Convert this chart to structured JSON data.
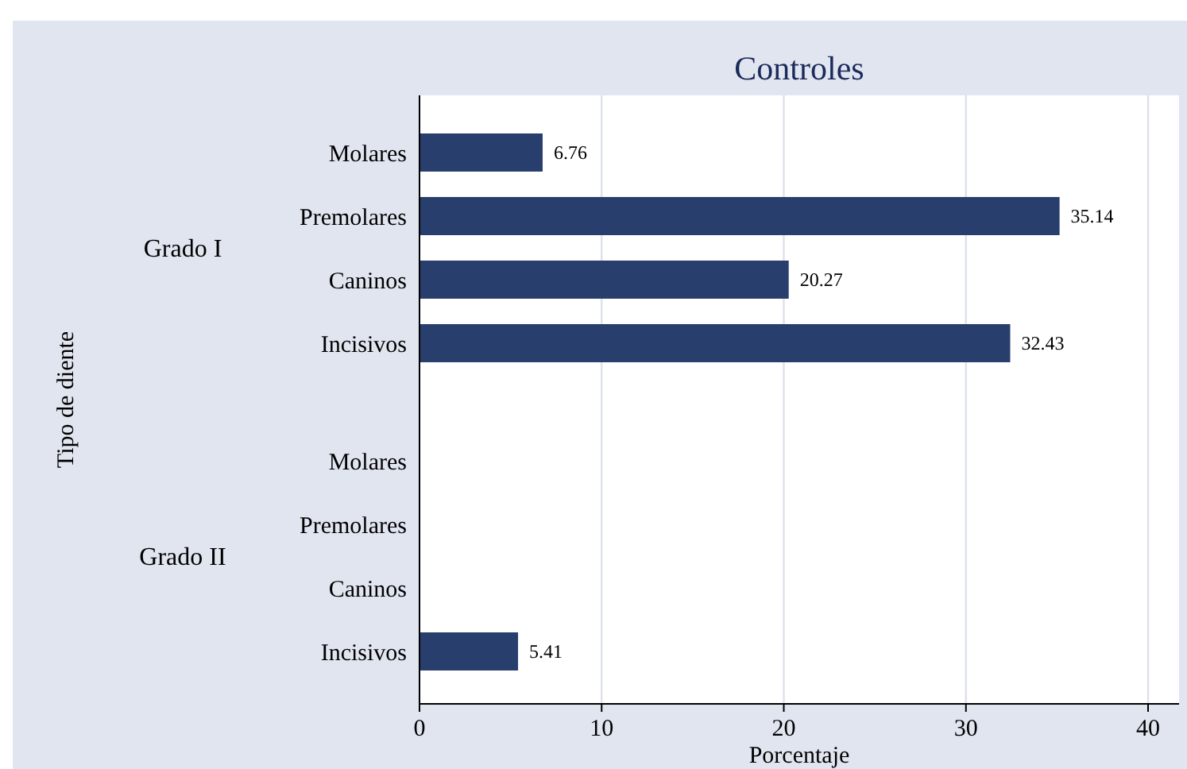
{
  "chart_data": {
    "type": "bar",
    "orientation": "horizontal",
    "title": "Controles",
    "xlabel": "Porcentaje",
    "categories": [
      "Molares",
      "Premolares",
      "Caninos",
      "Incisivos",
      "Molares",
      "Premolares",
      "Caninos",
      "Incisivos"
    ],
    "values": [
      6.76,
      35.14,
      20.27,
      32.43,
      null,
      null,
      null,
      5.41
    ],
    "color": "#283f6e",
    "data_labels": true,
    "annotations": [
      "Tipo de diente",
      "Grado I",
      "Grado II"
    ],
    "xlim": [
      0,
      41.7
    ],
    "xticks": [
      0,
      10,
      20,
      30,
      40
    ],
    "grid": "x"
  }
}
